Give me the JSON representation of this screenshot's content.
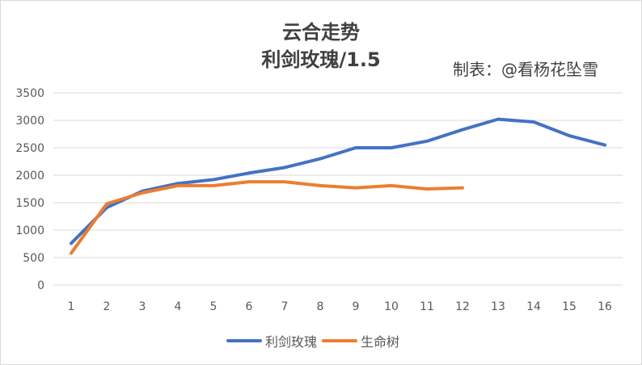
{
  "chart_data": {
    "type": "line",
    "title": "云合走势",
    "subtitle": "利剑玫瑰/1.5",
    "annotation": "制表：@看杨花坠雪",
    "xlabel": "",
    "ylabel": "",
    "x": [
      1,
      2,
      3,
      4,
      5,
      6,
      7,
      8,
      9,
      10,
      11,
      12,
      13,
      14,
      15,
      16
    ],
    "ylim": [
      0,
      3500
    ],
    "yticks": [
      0,
      500,
      1000,
      1500,
      2000,
      2500,
      3000,
      3500
    ],
    "grid": true,
    "legend_position": "bottom",
    "series": [
      {
        "name": "利剑玫瑰",
        "color": "#4472c4",
        "values": [
          760,
          1410,
          1710,
          1850,
          1920,
          2040,
          2140,
          2300,
          2500,
          2500,
          2620,
          2830,
          3020,
          2970,
          2720,
          2550
        ]
      },
      {
        "name": "生命树",
        "color": "#ed7d31",
        "values": [
          580,
          1480,
          1680,
          1810,
          1810,
          1880,
          1880,
          1810,
          1770,
          1810,
          1750,
          1770,
          null,
          null,
          null,
          null
        ]
      }
    ]
  }
}
